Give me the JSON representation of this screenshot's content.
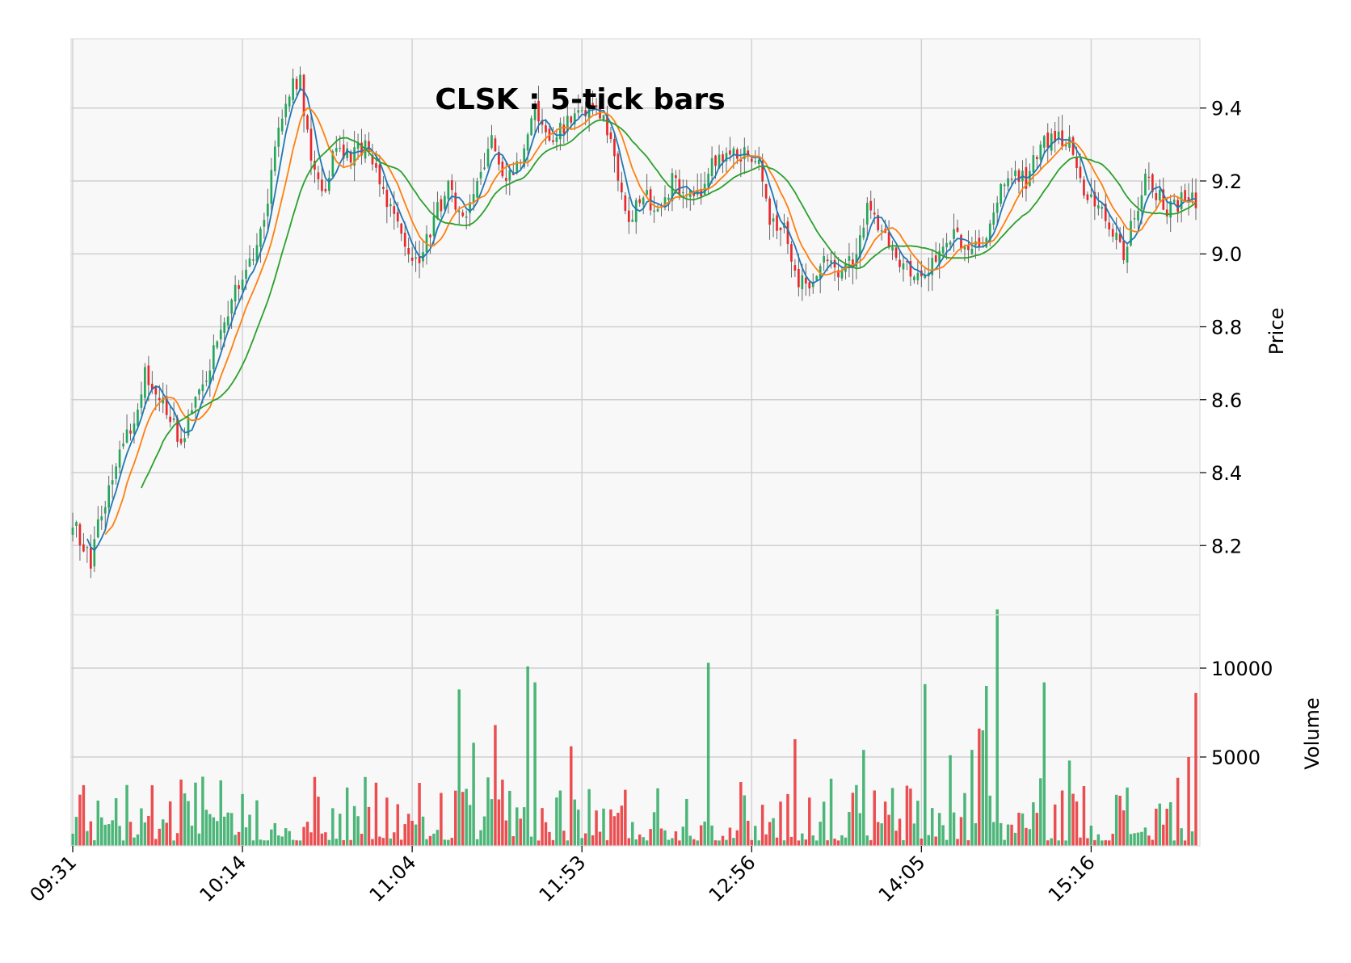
{
  "chart_data": {
    "type": "candlestick",
    "title": "CLSK : 5-tick bars",
    "price_panel": {
      "ylabel": "Price",
      "yticks": [
        8.2,
        8.4,
        8.6,
        8.8,
        9.0,
        9.2,
        9.4
      ],
      "ylim": [
        8.01,
        9.59
      ],
      "up_color": "#26a65b",
      "down_color": "#e8282b",
      "moving_averages": [
        {
          "window": 5,
          "color": "#1f77b4"
        },
        {
          "window": 10,
          "color": "#ff7f0e"
        },
        {
          "window": 20,
          "color": "#2ca02c"
        }
      ],
      "key_points": [
        {
          "bar": 0,
          "price": 8.27
        },
        {
          "bar": 5,
          "price": 8.15
        },
        {
          "bar": 8,
          "price": 8.3
        },
        {
          "bar": 12,
          "price": 8.42
        },
        {
          "bar": 16,
          "price": 8.52
        },
        {
          "bar": 20,
          "price": 8.67
        },
        {
          "bar": 25,
          "price": 8.6
        },
        {
          "bar": 30,
          "price": 8.48
        },
        {
          "bar": 34,
          "price": 8.6
        },
        {
          "bar": 38,
          "price": 8.7
        },
        {
          "bar": 42,
          "price": 8.82
        },
        {
          "bar": 46,
          "price": 8.92
        },
        {
          "bar": 50,
          "price": 8.98
        },
        {
          "bar": 54,
          "price": 9.15
        },
        {
          "bar": 57,
          "price": 9.33
        },
        {
          "bar": 60,
          "price": 9.45
        },
        {
          "bar": 63,
          "price": 9.47
        },
        {
          "bar": 66,
          "price": 9.25
        },
        {
          "bar": 70,
          "price": 9.17
        },
        {
          "bar": 73,
          "price": 9.3
        },
        {
          "bar": 77,
          "price": 9.27
        },
        {
          "bar": 81,
          "price": 9.3
        },
        {
          "bar": 85,
          "price": 9.2
        },
        {
          "bar": 89,
          "price": 9.1
        },
        {
          "bar": 93,
          "price": 9.0
        },
        {
          "bar": 96,
          "price": 8.97
        },
        {
          "bar": 100,
          "price": 9.1
        },
        {
          "bar": 104,
          "price": 9.18
        },
        {
          "bar": 108,
          "price": 9.1
        },
        {
          "bar": 112,
          "price": 9.2
        },
        {
          "bar": 116,
          "price": 9.32
        },
        {
          "bar": 120,
          "price": 9.2
        },
        {
          "bar": 124,
          "price": 9.27
        },
        {
          "bar": 128,
          "price": 9.4
        },
        {
          "bar": 132,
          "price": 9.32
        },
        {
          "bar": 136,
          "price": 9.35
        },
        {
          "bar": 140,
          "price": 9.38
        },
        {
          "bar": 144,
          "price": 9.42
        },
        {
          "bar": 148,
          "price": 9.35
        },
        {
          "bar": 151,
          "price": 9.2
        },
        {
          "bar": 154,
          "price": 9.1
        },
        {
          "bar": 158,
          "price": 9.17
        },
        {
          "bar": 162,
          "price": 9.1
        },
        {
          "bar": 166,
          "price": 9.2
        },
        {
          "bar": 170,
          "price": 9.16
        },
        {
          "bar": 174,
          "price": 9.17
        },
        {
          "bar": 178,
          "price": 9.26
        },
        {
          "bar": 182,
          "price": 9.28
        },
        {
          "bar": 186,
          "price": 9.27
        },
        {
          "bar": 190,
          "price": 9.25
        },
        {
          "bar": 193,
          "price": 9.1
        },
        {
          "bar": 197,
          "price": 9.06
        },
        {
          "bar": 200,
          "price": 8.93
        },
        {
          "bar": 204,
          "price": 8.92
        },
        {
          "bar": 208,
          "price": 9.0
        },
        {
          "bar": 212,
          "price": 8.95
        },
        {
          "bar": 216,
          "price": 8.98
        },
        {
          "bar": 220,
          "price": 9.12
        },
        {
          "bar": 224,
          "price": 9.05
        },
        {
          "bar": 228,
          "price": 9.0
        },
        {
          "bar": 232,
          "price": 8.95
        },
        {
          "bar": 236,
          "price": 8.94
        },
        {
          "bar": 240,
          "price": 9.0
        },
        {
          "bar": 244,
          "price": 9.06
        },
        {
          "bar": 248,
          "price": 9.0
        },
        {
          "bar": 252,
          "price": 9.03
        },
        {
          "bar": 256,
          "price": 9.15
        },
        {
          "bar": 260,
          "price": 9.22
        },
        {
          "bar": 264,
          "price": 9.2
        },
        {
          "bar": 268,
          "price": 9.3
        },
        {
          "bar": 272,
          "price": 9.32
        },
        {
          "bar": 276,
          "price": 9.3
        },
        {
          "bar": 280,
          "price": 9.18
        },
        {
          "bar": 284,
          "price": 9.12
        },
        {
          "bar": 288,
          "price": 9.07
        },
        {
          "bar": 291,
          "price": 9.0
        },
        {
          "bar": 294,
          "price": 9.1
        },
        {
          "bar": 297,
          "price": 9.2
        },
        {
          "bar": 300,
          "price": 9.17
        },
        {
          "bar": 303,
          "price": 9.12
        },
        {
          "bar": 306,
          "price": 9.14
        },
        {
          "bar": 309,
          "price": 9.16
        },
        {
          "bar": 311,
          "price": 9.15
        }
      ]
    },
    "volume_panel": {
      "ylabel": "Volume",
      "yticks": [
        5000,
        10000
      ],
      "ylim": [
        0,
        13000
      ],
      "spikes": [
        {
          "bar": 107,
          "volume": 8800
        },
        {
          "bar": 111,
          "volume": 5800
        },
        {
          "bar": 117,
          "volume": 6800
        },
        {
          "bar": 126,
          "volume": 10100
        },
        {
          "bar": 128,
          "volume": 9200
        },
        {
          "bar": 138,
          "volume": 5600
        },
        {
          "bar": 176,
          "volume": 10300
        },
        {
          "bar": 200,
          "volume": 6000
        },
        {
          "bar": 219,
          "volume": 5400
        },
        {
          "bar": 236,
          "volume": 9100
        },
        {
          "bar": 243,
          "volume": 5100
        },
        {
          "bar": 249,
          "volume": 5400
        },
        {
          "bar": 251,
          "volume": 6600
        },
        {
          "bar": 252,
          "volume": 6500
        },
        {
          "bar": 253,
          "volume": 9000
        },
        {
          "bar": 256,
          "volume": 13300
        },
        {
          "bar": 269,
          "volume": 9200
        },
        {
          "bar": 276,
          "volume": 4800
        },
        {
          "bar": 309,
          "volume": 5000
        },
        {
          "bar": 311,
          "volume": 8600
        }
      ]
    },
    "x_axis": {
      "tick_labels": [
        "09:31",
        "10:14",
        "11:04",
        "11:53",
        "12:56",
        "14:05",
        "15:16"
      ],
      "tick_bars": [
        0,
        47,
        94,
        141,
        188,
        235,
        282
      ],
      "bar_count": 312
    },
    "grid": true
  }
}
